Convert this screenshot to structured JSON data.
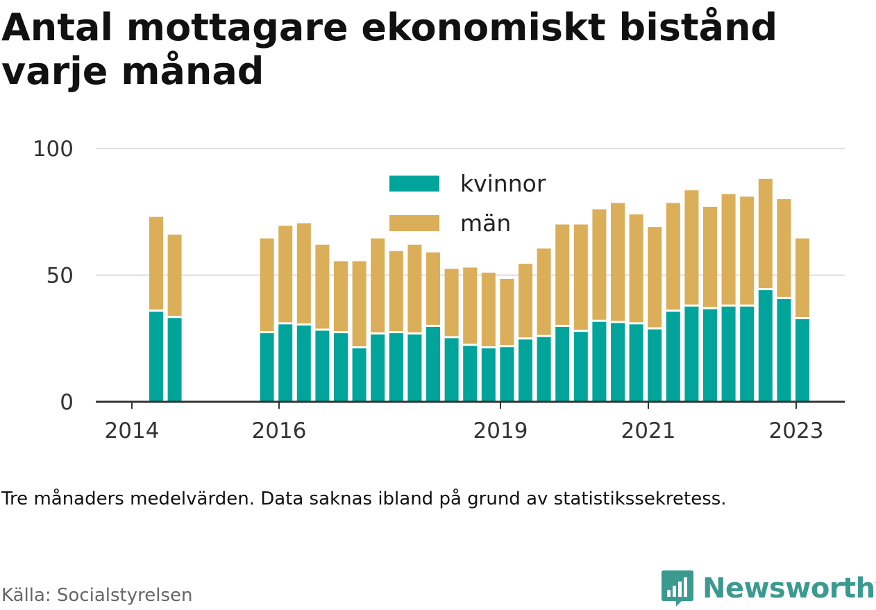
{
  "title": "Antal mottagare ekonomiskt bistånd varje månad",
  "note": "Tre månaders medelvärden. Data saknas ibland på grund av statistikssekretess.",
  "source": "Källa: Socialstyrelsen",
  "brand": {
    "name": "Newsworthy",
    "icon": "newsworthy-logo-icon"
  },
  "colors": {
    "kvinnor": "#00a49a",
    "man": "#dbae5a",
    "grid": "#dddddd",
    "axis": "#333333",
    "brand": "#3a9a8f"
  },
  "chart_data": {
    "type": "bar",
    "stacked": true,
    "title": "Antal mottagare ekonomiskt bistånd varje månad",
    "xlabel": "",
    "ylabel": "",
    "ylim": [
      0,
      100
    ],
    "y_ticks": [
      0,
      50,
      100
    ],
    "x_ticks": [
      "2014",
      "2016",
      "2019",
      "2021",
      "2023"
    ],
    "grid": true,
    "legend_position": "top-center",
    "categories": [
      "2014-Q2",
      "2014-Q3",
      "2015-Q4",
      "2016-Q1",
      "2016-Q2",
      "2016-Q3",
      "2016-Q4",
      "2017-Q1",
      "2017-Q2",
      "2017-Q3",
      "2017-Q4",
      "2018-Q1",
      "2018-Q2",
      "2018-Q3",
      "2018-Q4",
      "2019-Q1",
      "2019-Q2",
      "2019-Q3",
      "2019-Q4",
      "2020-Q1",
      "2020-Q2",
      "2020-Q3",
      "2020-Q4",
      "2021-Q1",
      "2021-Q2",
      "2021-Q3",
      "2021-Q4",
      "2022-Q1",
      "2022-Q2",
      "2022-Q3",
      "2022-Q4",
      "2023-Q1"
    ],
    "series": [
      {
        "name": "kvinnor",
        "values": [
          36,
          33.5,
          27.5,
          31,
          30.5,
          28.5,
          27.5,
          21.5,
          27,
          27.5,
          27,
          30,
          25.5,
          22.5,
          21.5,
          22,
          25,
          26,
          30,
          28,
          32,
          31.5,
          31,
          29,
          36,
          38,
          37,
          38,
          38,
          44.5,
          41,
          33
        ]
      },
      {
        "name": "män",
        "values": [
          37,
          32.5,
          37,
          38.5,
          40,
          33.5,
          28,
          34,
          37.5,
          32,
          35,
          29,
          27,
          30.5,
          29.5,
          26.5,
          29.5,
          34.5,
          40,
          42,
          44,
          47,
          43,
          40,
          42.5,
          45.5,
          40,
          44,
          43,
          43.5,
          39,
          31.5
        ]
      }
    ]
  }
}
